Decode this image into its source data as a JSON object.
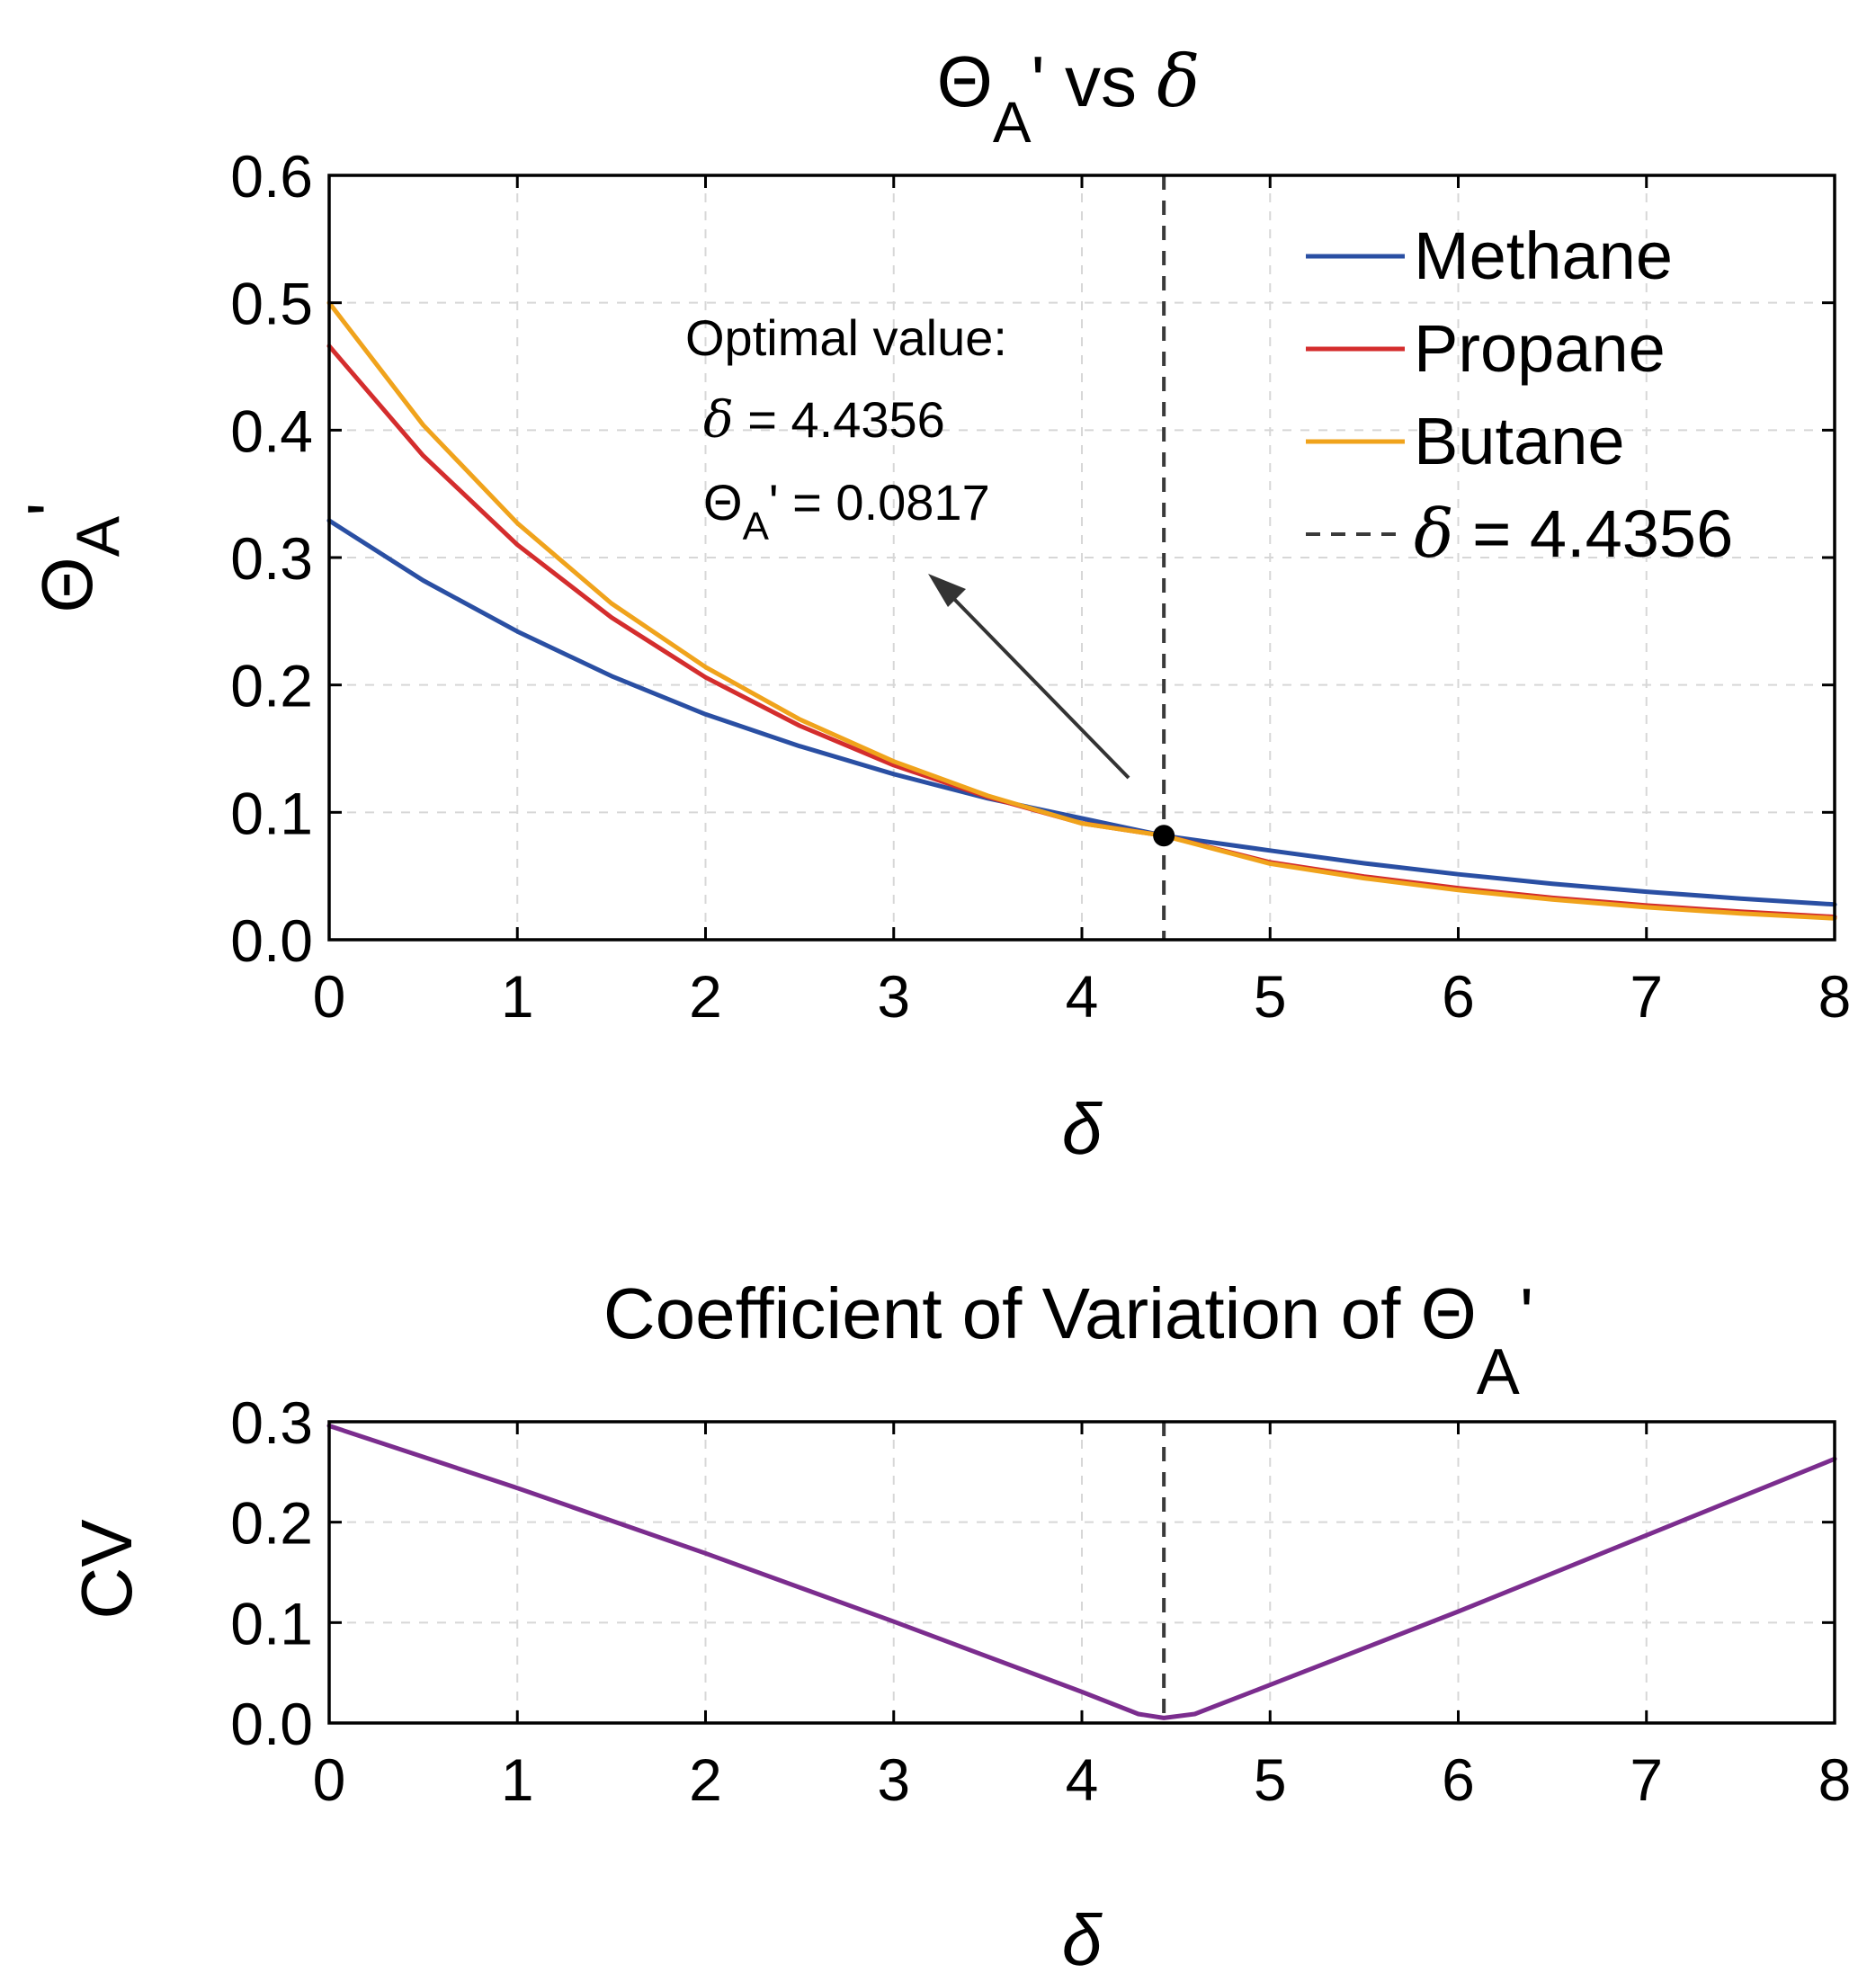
{
  "chart_data": [
    {
      "type": "line",
      "title_main": "Θ",
      "title_sub": "A",
      "title_tail": "' vs ",
      "title_delta": "δ",
      "xlabel": "δ",
      "ylabel_main": "Θ",
      "ylabel_sub": "A",
      "ylabel_prime": "'",
      "xlim": [
        0,
        8
      ],
      "ylim": [
        0,
        0.6
      ],
      "xticks": [
        "0",
        "1",
        "2",
        "3",
        "4",
        "5",
        "6",
        "7",
        "8"
      ],
      "yticks": [
        "0.0",
        "0.1",
        "0.2",
        "0.3",
        "0.4",
        "0.5",
        "0.6"
      ],
      "grid": true,
      "legend_position": "top-right",
      "series": [
        {
          "name": "Methane",
          "color": "#2a4fa3",
          "x": [
            0,
            0.5,
            1,
            1.5,
            2,
            2.5,
            3,
            3.5,
            4,
            4.4356,
            5,
            5.5,
            6,
            6.5,
            7,
            7.5,
            8
          ],
          "y": [
            0.329,
            0.282,
            0.242,
            0.207,
            0.177,
            0.152,
            0.13,
            0.111,
            0.0953,
            0.0817,
            0.07,
            0.06,
            0.0514,
            0.044,
            0.0377,
            0.0323,
            0.0277
          ]
        },
        {
          "name": "Propane",
          "color": "#d42d2d",
          "x": [
            0,
            0.5,
            1,
            1.5,
            2,
            2.5,
            3,
            3.5,
            4,
            4.4356,
            5,
            5.5,
            6,
            6.5,
            7,
            7.5,
            8
          ],
          "y": [
            0.466,
            0.38,
            0.31,
            0.253,
            0.206,
            0.168,
            0.137,
            0.112,
            0.0914,
            0.0817,
            0.0608,
            0.0496,
            0.0405,
            0.033,
            0.0269,
            0.022,
            0.0179
          ]
        },
        {
          "name": "Butane",
          "color": "#f0a31c",
          "x": [
            0,
            0.5,
            1,
            1.5,
            2,
            2.5,
            3,
            3.5,
            4,
            4.4356,
            5,
            5.5,
            6,
            6.5,
            7,
            7.5,
            8
          ],
          "y": [
            0.5,
            0.404,
            0.327,
            0.264,
            0.214,
            0.173,
            0.14,
            0.113,
            0.0913,
            0.0817,
            0.0597,
            0.0483,
            0.039,
            0.0316,
            0.0255,
            0.0206,
            0.0167
          ]
        }
      ],
      "reference_line": {
        "x": 4.4356,
        "legend_prefix": "δ",
        "legend_value": " = 4.4356",
        "color": "#3a3a3a"
      },
      "optimal_point": {
        "x": 4.4356,
        "y": 0.0817
      },
      "annotation": {
        "line1": "Optimal value:",
        "line2_symbol": "δ",
        "line2_value": " = 4.4356",
        "line3_symbol": "Θ",
        "line3_sub": "A",
        "line3_value": "' = 0.0817"
      }
    },
    {
      "type": "line",
      "title_main": "Coefficient of Variation of Θ",
      "title_sub": "A",
      "title_prime": "'",
      "xlabel": "δ",
      "ylabel": "CV",
      "xlim": [
        0,
        8
      ],
      "ylim": [
        0,
        0.3
      ],
      "xticks": [
        "0",
        "1",
        "2",
        "3",
        "4",
        "5",
        "6",
        "7",
        "8"
      ],
      "yticks": [
        "0.0",
        "0.1",
        "0.2",
        "0.3"
      ],
      "grid": true,
      "series": [
        {
          "color": "#7b2d8e",
          "x": [
            0,
            1,
            2,
            3,
            4,
            4.3,
            4.4356,
            4.6,
            5,
            6,
            7,
            8
          ],
          "y": [
            0.296,
            0.234,
            0.169,
            0.101,
            0.031,
            0.009,
            0.005,
            0.009,
            0.038,
            0.111,
            0.187,
            0.263
          ]
        }
      ],
      "reference_line": {
        "x": 4.4356,
        "color": "#3a3a3a"
      }
    }
  ]
}
